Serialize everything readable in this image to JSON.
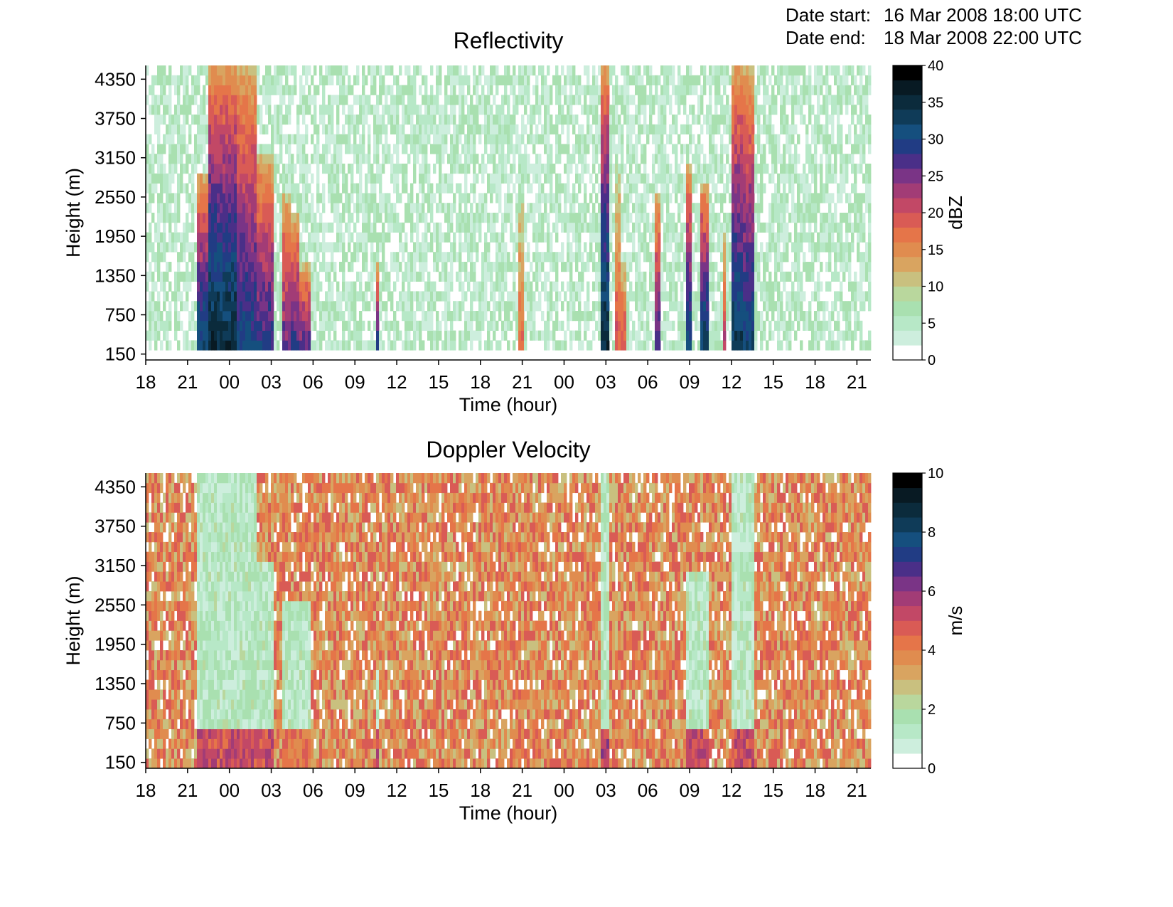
{
  "header": {
    "date_start_label": "Date start:",
    "date_start_value": "16 Mar 2008 18:00 UTC",
    "date_end_label": "Date end:",
    "date_end_value": "18 Mar 2008 22:00 UTC"
  },
  "chart_data": [
    {
      "type": "heatmap",
      "title": "Reflectivity",
      "xlabel": "Time (hour)",
      "ylabel": "Height (m)",
      "x_ticks": [
        "18",
        "21",
        "00",
        "03",
        "06",
        "09",
        "12",
        "15",
        "18",
        "21",
        "00",
        "03",
        "06",
        "09",
        "12",
        "15",
        "18",
        "21"
      ],
      "x_range_hours": [
        0,
        52
      ],
      "y_ticks": [
        150,
        750,
        1350,
        1950,
        2550,
        3150,
        3750,
        4350
      ],
      "y_range": [
        60,
        4560
      ],
      "colorbar": {
        "label": "dBZ",
        "range": [
          0,
          40
        ],
        "ticks": [
          0,
          5,
          10,
          15,
          20,
          25,
          30,
          35,
          40
        ],
        "colors": [
          "#ffffff",
          "#cdeedd",
          "#b7e8c7",
          "#a9e0b0",
          "#b9d79d",
          "#c9c07f",
          "#d9a460",
          "#e08c4f",
          "#e57549",
          "#d95b55",
          "#c24866",
          "#a23c76",
          "#7a3486",
          "#4a2f88",
          "#213c84",
          "#154f7e",
          "#0f3b58",
          "#0b2b3c",
          "#081a23",
          "#000000"
        ]
      },
      "regions": [
        {
          "t": [
            3.7,
            4.5
          ],
          "top": 2900,
          "max": 33
        },
        {
          "t": [
            4.5,
            6.6
          ],
          "top": 4560,
          "max": 36
        },
        {
          "t": [
            6.6,
            8.0
          ],
          "top": 4560,
          "max": 31
        },
        {
          "t": [
            8.0,
            9.2
          ],
          "top": 3200,
          "max": 30
        },
        {
          "t": [
            9.8,
            10.4
          ],
          "top": 2600,
          "max": 27
        },
        {
          "t": [
            10.4,
            11.0
          ],
          "top": 2300,
          "max": 30
        },
        {
          "t": [
            11.0,
            11.8
          ],
          "top": 1500,
          "max": 29
        },
        {
          "t": [
            16.5,
            16.8
          ],
          "top": 1500,
          "max": 32
        },
        {
          "t": [
            26.7,
            27.1
          ],
          "top": 2700,
          "max": 18
        },
        {
          "t": [
            32.6,
            33.3
          ],
          "top": 4560,
          "max": 36
        },
        {
          "t": [
            33.6,
            34.0
          ],
          "top": 3000,
          "max": 20
        },
        {
          "t": [
            34.0,
            34.4
          ],
          "top": 1600,
          "max": 22
        },
        {
          "t": [
            36.5,
            36.9
          ],
          "top": 2600,
          "max": 29
        },
        {
          "t": [
            38.8,
            39.2
          ],
          "top": 3000,
          "max": 33
        },
        {
          "t": [
            39.7,
            40.3
          ],
          "top": 2700,
          "max": 34
        },
        {
          "t": [
            41.3,
            41.7
          ],
          "top": 2000,
          "max": 24
        },
        {
          "t": [
            42.0,
            42.8
          ],
          "top": 4560,
          "max": 34
        },
        {
          "t": [
            42.8,
            43.6
          ],
          "top": 4560,
          "max": 32
        }
      ]
    },
    {
      "type": "heatmap",
      "title": "Doppler Velocity",
      "xlabel": "Time (hour)",
      "ylabel": "Height (m)",
      "x_ticks": [
        "18",
        "21",
        "00",
        "03",
        "06",
        "09",
        "12",
        "15",
        "18",
        "21",
        "00",
        "03",
        "06",
        "09",
        "12",
        "15",
        "18",
        "21"
      ],
      "x_range_hours": [
        0,
        52
      ],
      "y_ticks": [
        150,
        750,
        1350,
        1950,
        2550,
        3150,
        3750,
        4350
      ],
      "y_range": [
        60,
        4560
      ],
      "colorbar": {
        "label": "m/s",
        "range": [
          0,
          10
        ],
        "ticks": [
          0,
          2,
          4,
          6,
          8,
          10
        ],
        "colors": [
          "#ffffff",
          "#cdeedd",
          "#b7e8c7",
          "#a9e0b0",
          "#b9d79d",
          "#c9c07f",
          "#d9a460",
          "#e08c4f",
          "#e57549",
          "#d95b55",
          "#c24866",
          "#a23c76",
          "#7a3486",
          "#4a2f88",
          "#213c84",
          "#154f7e",
          "#0f3b58",
          "#0b2b3c",
          "#081a23",
          "#000000"
        ]
      },
      "regions": [
        {
          "t": [
            3.7,
            8.0
          ],
          "top": 4560,
          "max": 6
        },
        {
          "t": [
            8.0,
            9.2
          ],
          "top": 3200,
          "max": 6
        },
        {
          "t": [
            9.8,
            11.8
          ],
          "top": 2600,
          "max": 5
        },
        {
          "t": [
            16.5,
            16.8
          ],
          "top": 1500,
          "max": 6
        },
        {
          "t": [
            32.6,
            33.3
          ],
          "top": 4560,
          "max": 6.5
        },
        {
          "t": [
            38.8,
            40.3
          ],
          "top": 3000,
          "max": 6
        },
        {
          "t": [
            42.0,
            43.6
          ],
          "top": 4560,
          "max": 6
        }
      ]
    }
  ]
}
